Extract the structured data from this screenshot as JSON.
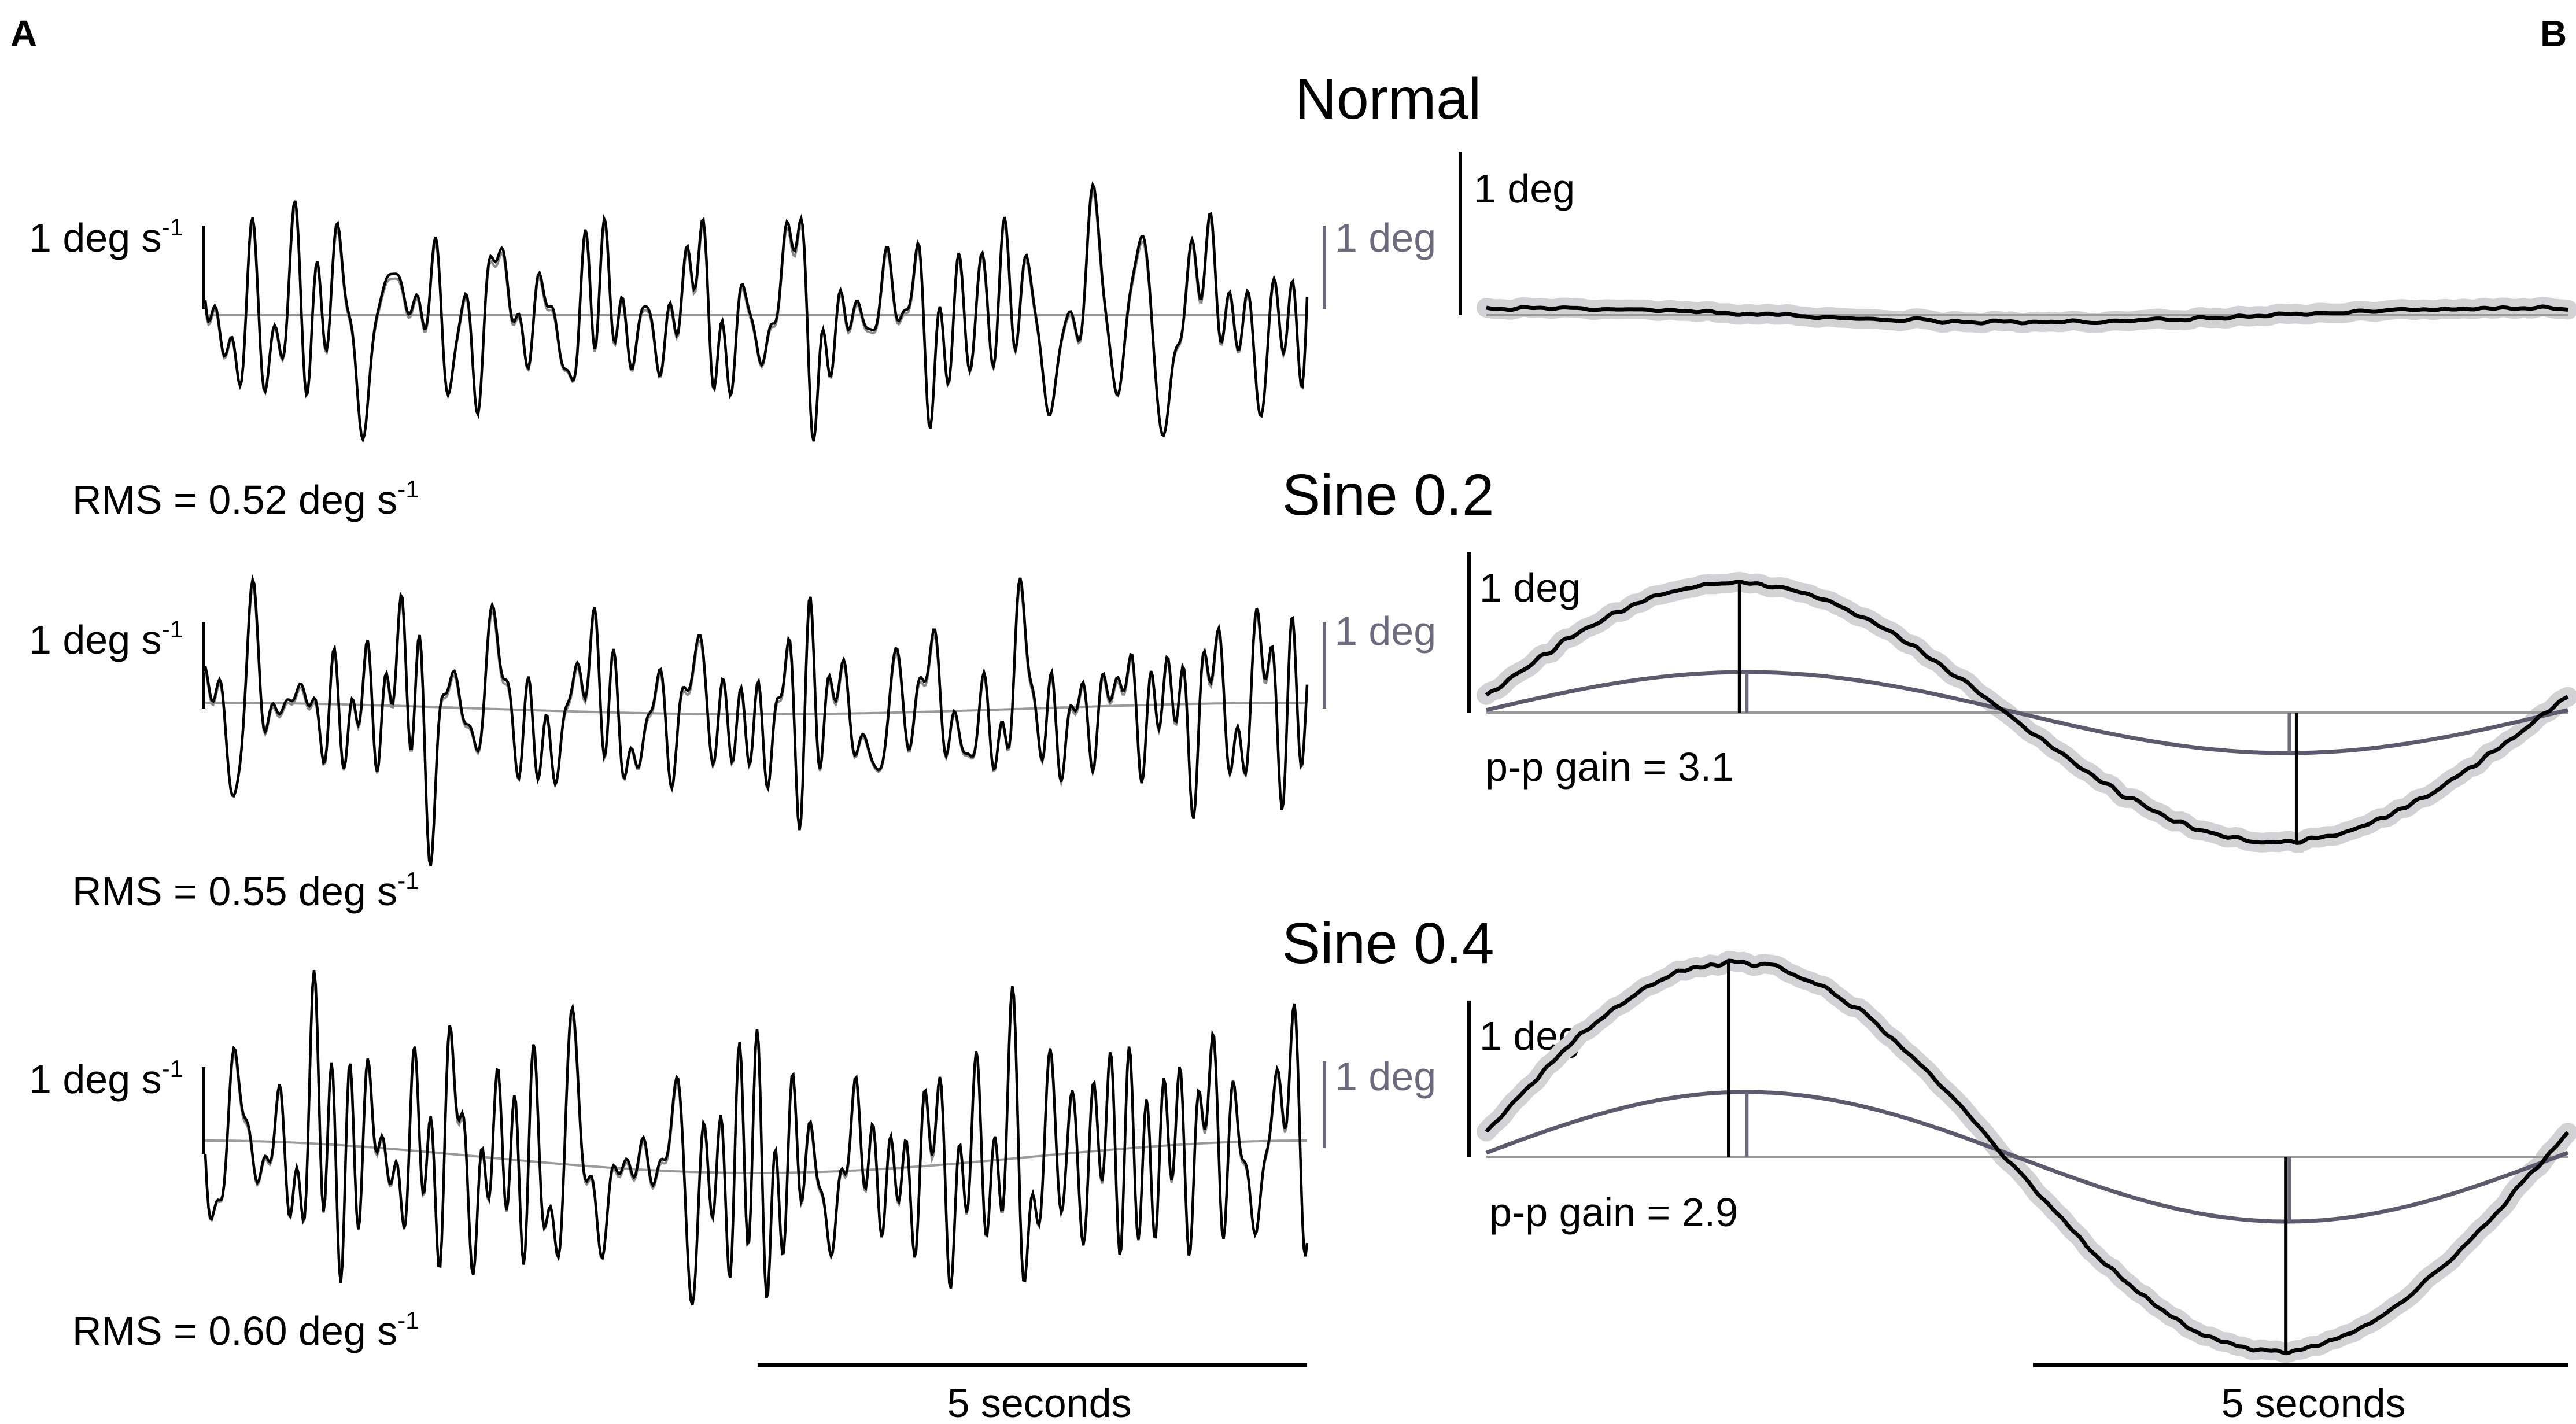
{
  "panels": {
    "a_label": "A",
    "b_label": "B"
  },
  "conditions": [
    {
      "title": "Normal",
      "rms_label": "RMS = 0.52 deg s",
      "rms_sup": "-1",
      "gain_label": ""
    },
    {
      "title": "Sine 0.2",
      "rms_label": "RMS = 0.55 deg s",
      "rms_sup": "-1",
      "gain_label": "p-p gain = 3.1"
    },
    {
      "title": "Sine 0.4",
      "rms_label": "RMS = 0.60 deg s",
      "rms_sup": "-1",
      "gain_label": "p-p gain = 2.9"
    }
  ],
  "scalebars": {
    "velocity_text": "1 deg s",
    "velocity_sup": "-1",
    "position_text": "1 deg",
    "time_text": "5 seconds"
  },
  "chart_data": [
    {
      "type": "line",
      "panel": "A",
      "condition": "Normal",
      "rms": 0.52,
      "units": "deg s-1",
      "series": [
        {
          "color": "#000000"
        },
        {
          "color": "#888888"
        }
      ],
      "duration_s": 10
    },
    {
      "type": "line",
      "panel": "A",
      "condition": "Sine 0.2",
      "rms": 0.55,
      "units": "deg s-1",
      "series": [
        {
          "color": "#000000"
        },
        {
          "color": "#888888"
        }
      ],
      "duration_s": 10
    },
    {
      "type": "line",
      "panel": "A",
      "condition": "Sine 0.4",
      "rms": 0.6,
      "units": "deg s-1",
      "series": [
        {
          "color": "#000000"
        },
        {
          "color": "#888888"
        }
      ],
      "duration_s": 10
    },
    {
      "type": "line",
      "panel": "B",
      "condition": "Normal",
      "units": "deg",
      "response_amp_deg": 0.05,
      "stimulus_amp_deg": 0.0,
      "series": [
        {
          "color": "#000000"
        },
        {
          "color": "#5e5a6e"
        }
      ],
      "duration_s": 10
    },
    {
      "type": "line",
      "panel": "B",
      "condition": "Sine 0.2",
      "units": "deg",
      "pp_gain": 3.1,
      "response_amp_deg": 0.8,
      "stimulus_amp_deg": 0.25,
      "series": [
        {
          "color": "#000000"
        },
        {
          "color": "#5e5a6e"
        }
      ],
      "duration_s": 10
    },
    {
      "type": "line",
      "panel": "B",
      "condition": "Sine 0.4",
      "units": "deg",
      "pp_gain": 2.9,
      "response_amp_deg": 1.2,
      "stimulus_amp_deg": 0.4,
      "series": [
        {
          "color": "#000000"
        },
        {
          "color": "#5e5a6e"
        }
      ],
      "duration_s": 10
    }
  ],
  "colors": {
    "response": "#000000",
    "stimulus": "#5e5a6e",
    "velocity_overlay": "#8c8c8c",
    "ci_band": "#d2d2d4",
    "baseline": "#9a9a9a"
  }
}
